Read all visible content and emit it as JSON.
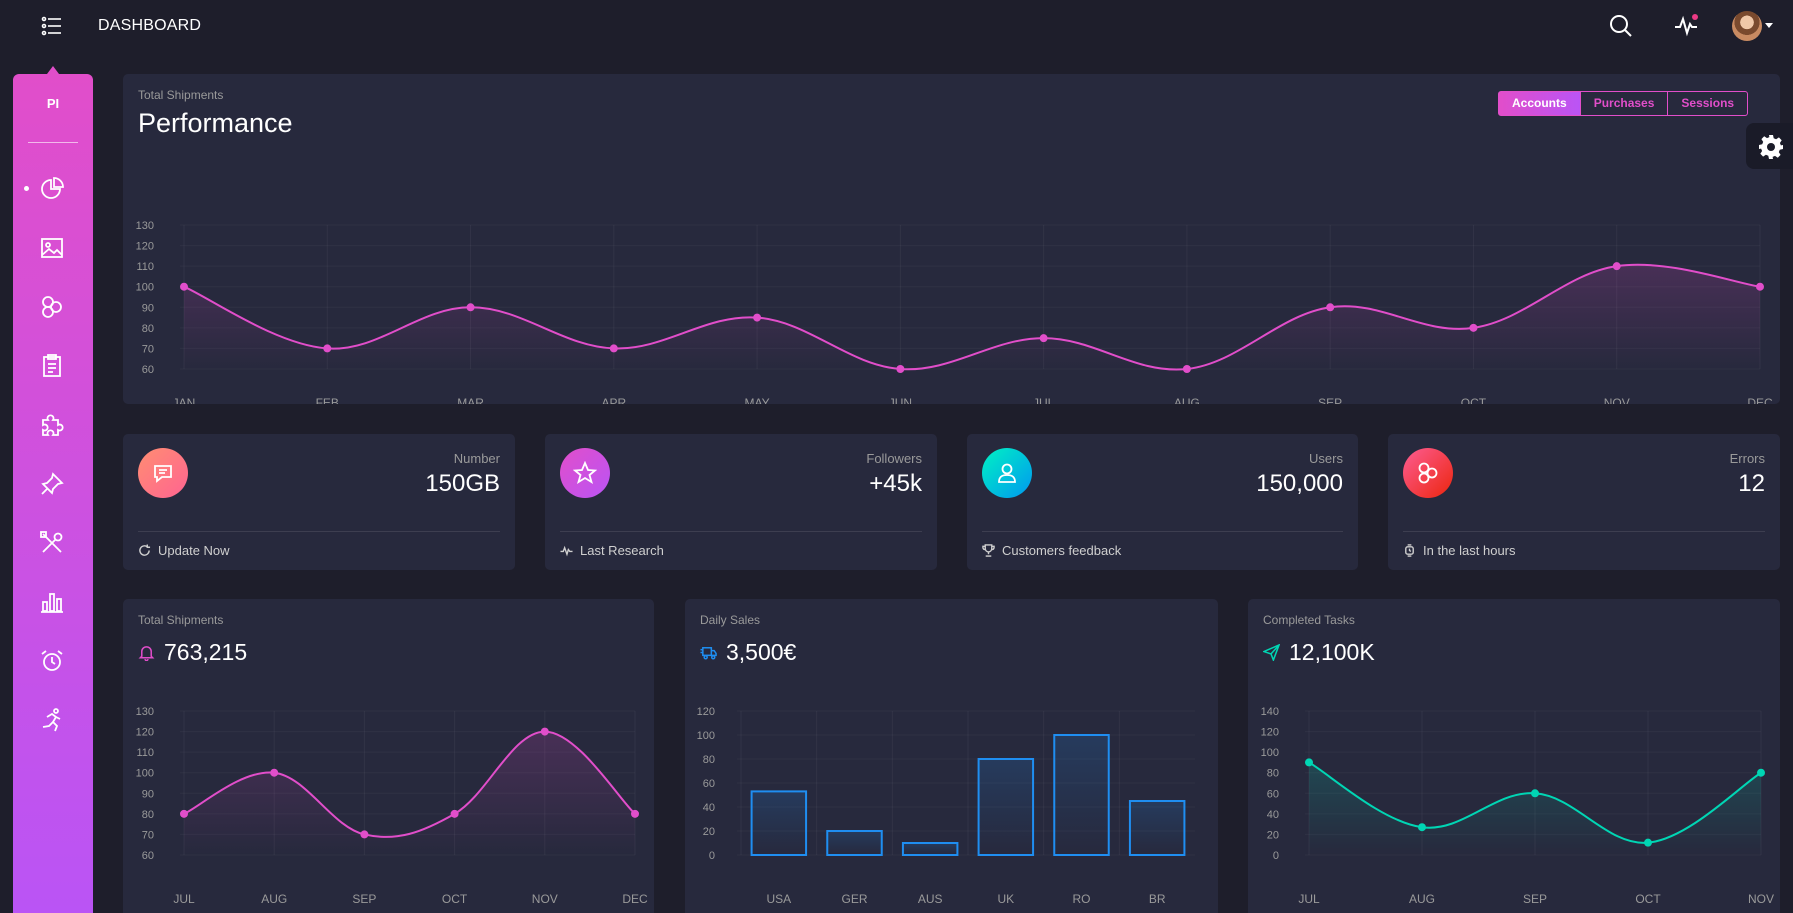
{
  "app": {
    "title": "DASHBOARD",
    "logo": "PI",
    "colors": {
      "accent": "#e14eca",
      "accent2": "#ba54f5",
      "card": "#27293d",
      "bg": "#1e1e2b",
      "teal": "#00f2c3",
      "blue": "#1f8ef1"
    }
  },
  "topbar": {
    "icons": [
      "search-icon",
      "activity-icon",
      "avatar"
    ]
  },
  "sidebar": {
    "items": [
      {
        "icon": "chart-pie-icon",
        "active": true
      },
      {
        "icon": "image-icon",
        "active": false
      },
      {
        "icon": "atom-icon",
        "active": false
      },
      {
        "icon": "clipboard-icon",
        "active": false
      },
      {
        "icon": "puzzle-icon",
        "active": false
      },
      {
        "icon": "pin-icon",
        "active": false
      },
      {
        "icon": "tools-icon",
        "active": false
      },
      {
        "icon": "bar-chart-icon",
        "active": false
      },
      {
        "icon": "alarm-icon",
        "active": false
      },
      {
        "icon": "runner-icon",
        "active": false
      }
    ]
  },
  "performance": {
    "subtitle": "Total Shipments",
    "title": "Performance",
    "tabs": [
      {
        "label": "Accounts",
        "active": true
      },
      {
        "label": "Purchases",
        "active": false
      },
      {
        "label": "Sessions",
        "active": false
      }
    ]
  },
  "stats": [
    {
      "label": "Number",
      "value": "150GB",
      "footer": "Update Now",
      "icon": "chat-icon",
      "footer_icon": "refresh-icon",
      "gradient": [
        "#ff8d72",
        "#ff6491"
      ]
    },
    {
      "label": "Followers",
      "value": "+45k",
      "footer": "Last Research",
      "icon": "star-icon",
      "footer_icon": "pulse-icon",
      "gradient": [
        "#e14eca",
        "#ba54f5"
      ]
    },
    {
      "label": "Users",
      "value": "150,000",
      "footer": "Customers feedback",
      "icon": "user-icon",
      "footer_icon": "trophy-icon",
      "gradient": [
        "#00f2c3",
        "#0098f0"
      ]
    },
    {
      "label": "Errors",
      "value": "12",
      "footer": "In the last hours",
      "icon": "atom-icon",
      "footer_icon": "watch-icon",
      "gradient": [
        "#fd5d93",
        "#ec250d"
      ]
    }
  ],
  "cards": {
    "shipments": {
      "subtitle": "Total Shipments",
      "value": "763,215",
      "icon": "bell-icon"
    },
    "daily_sales": {
      "subtitle": "Daily Sales",
      "value": "3,500€",
      "icon": "truck-icon"
    },
    "completed": {
      "subtitle": "Completed Tasks",
      "value": "12,100K",
      "icon": "send-icon"
    }
  },
  "chart_data": [
    {
      "id": "performance",
      "type": "line",
      "title": "Performance",
      "categories": [
        "JAN",
        "FEB",
        "MAR",
        "APR",
        "MAY",
        "JUN",
        "JUL",
        "AUG",
        "SEP",
        "OCT",
        "NOV",
        "DEC"
      ],
      "values": [
        100,
        70,
        90,
        70,
        85,
        60,
        75,
        60,
        90,
        80,
        110,
        100
      ],
      "ylim": [
        60,
        130
      ],
      "yticks": [
        60,
        70,
        80,
        90,
        100,
        110,
        120,
        130
      ],
      "color": "#e14eca"
    },
    {
      "id": "shipments",
      "type": "line",
      "title": "Total Shipments",
      "categories": [
        "JUL",
        "AUG",
        "SEP",
        "OCT",
        "NOV",
        "DEC"
      ],
      "values": [
        80,
        100,
        70,
        80,
        120,
        80
      ],
      "ylim": [
        60,
        130
      ],
      "yticks": [
        60,
        70,
        80,
        90,
        100,
        110,
        120,
        130
      ],
      "color": "#e14eca"
    },
    {
      "id": "daily_sales",
      "type": "bar",
      "title": "Daily Sales",
      "categories": [
        "USA",
        "GER",
        "AUS",
        "UK",
        "RO",
        "BR"
      ],
      "values": [
        53,
        20,
        10,
        80,
        100,
        45
      ],
      "ylim": [
        0,
        120
      ],
      "yticks": [
        0,
        20,
        40,
        60,
        80,
        100,
        120
      ],
      "color": "#1f8ef1"
    },
    {
      "id": "completed",
      "type": "line",
      "title": "Completed Tasks",
      "categories": [
        "JUL",
        "AUG",
        "SEP",
        "OCT",
        "NOV"
      ],
      "values": [
        90,
        27,
        60,
        12,
        80
      ],
      "ylim": [
        0,
        140
      ],
      "yticks": [
        0,
        20,
        40,
        60,
        80,
        100,
        120,
        140
      ],
      "color": "#00d6b4"
    }
  ]
}
